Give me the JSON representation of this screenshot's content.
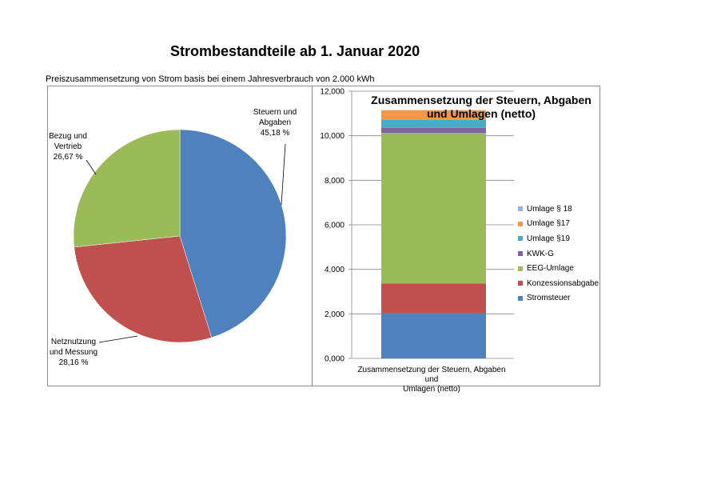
{
  "page": {
    "title": "Strombestandteile ab 1. Januar 2020",
    "subtitle": "Preiszusammensetzung von Strom basis bei einem Jahresverbrauch von 2.000 kWh"
  },
  "chart_data": [
    {
      "type": "pie",
      "title": "",
      "slices": [
        {
          "label_lines": [
            "Steuern und",
            "Abgaben",
            "45,18 %"
          ],
          "value": 45.18,
          "color": "#4f81bd"
        },
        {
          "label_lines": [
            "Netznutzung",
            "und Messung",
            "28,16 %"
          ],
          "value": 28.16,
          "color": "#c0504d"
        },
        {
          "label_lines": [
            "Bezug und",
            "Vertrieb",
            "26,67 %"
          ],
          "value": 26.67,
          "color": "#9bbb59"
        }
      ]
    },
    {
      "type": "bar",
      "stacked": true,
      "title": "Zusammensetzung der Steuern, Abgaben und Umlagen (netto)",
      "categories": [
        "Zusammensetzung der Steuern, Abgaben und Umlagen (netto)"
      ],
      "category_lines": [
        "Zusammensetzung der Steuern, Abgaben und",
        "Umlagen (netto)"
      ],
      "ylim": [
        0,
        12000
      ],
      "yticks": [
        0,
        2000,
        4000,
        6000,
        8000,
        10000,
        12000
      ],
      "ytick_labels": [
        "0,000",
        "2,000",
        "4,000",
        "6,000",
        "8,000",
        "10,000",
        "12,000"
      ],
      "grid": true,
      "legend_position": "right",
      "series": [
        {
          "name": "Stromsteuer",
          "values": [
            2050
          ],
          "color": "#4f81bd"
        },
        {
          "name": "Konzessionsabgabe",
          "values": [
            1320
          ],
          "color": "#c0504d"
        },
        {
          "name": "EEG-Umlage",
          "values": [
            6760
          ],
          "color": "#9bbb59"
        },
        {
          "name": "KWK-G",
          "values": [
            230
          ],
          "color": "#8064a2"
        },
        {
          "name": "Umlage §19",
          "values": [
            360
          ],
          "color": "#4bacc6"
        },
        {
          "name": "Umlage §17",
          "values": [
            420
          ],
          "color": "#f79646"
        },
        {
          "name": "Umlage § 18",
          "values": [
            10
          ],
          "color": "#95b3d7"
        }
      ]
    }
  ]
}
